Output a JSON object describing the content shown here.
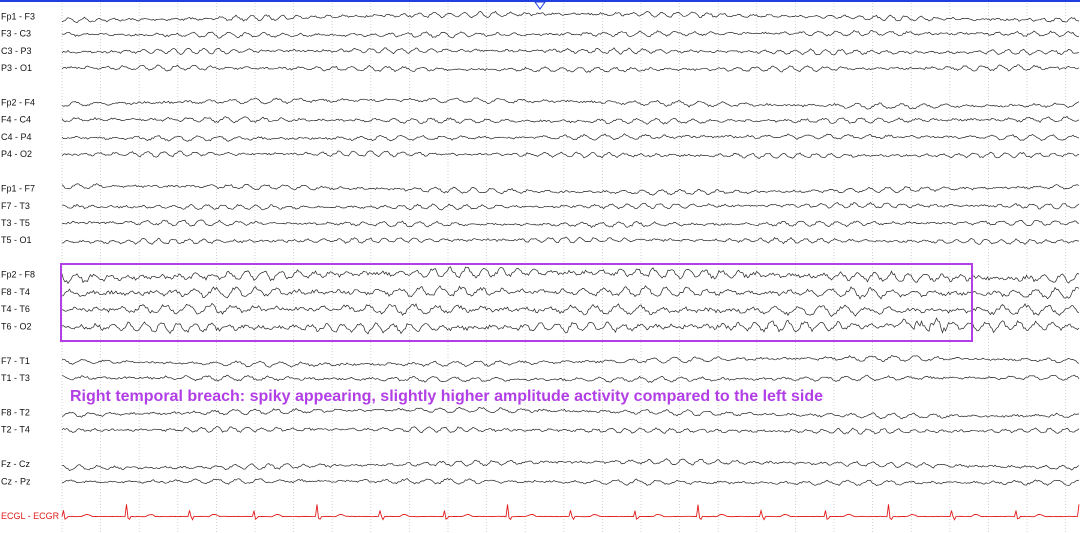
{
  "montage": [
    [
      "Fp1 - F3",
      "F3 - C3",
      "C3 - P3",
      "P3 - O1"
    ],
    [
      "Fp2 - F4",
      "F4 - C4",
      "C4 - P4",
      "P4 - O2"
    ],
    [
      "Fp1 - F7",
      "F7 - T3",
      "T3 - T5",
      "T5 - O1"
    ],
    [
      "Fp2 - F8",
      "F8 - T4",
      "T4 - T6",
      "T6 - O2"
    ],
    [
      "F7 - T1",
      "T1 - T3"
    ],
    [
      "F8 - T2",
      "T2 - T4"
    ],
    [
      "Fz - Cz",
      "Cz - Pz"
    ],
    [
      "ECGL - ECGR"
    ]
  ],
  "annotation": "Right temporal breach: spiky appearing, slightly higher amplitude activity compared to the left side"
}
